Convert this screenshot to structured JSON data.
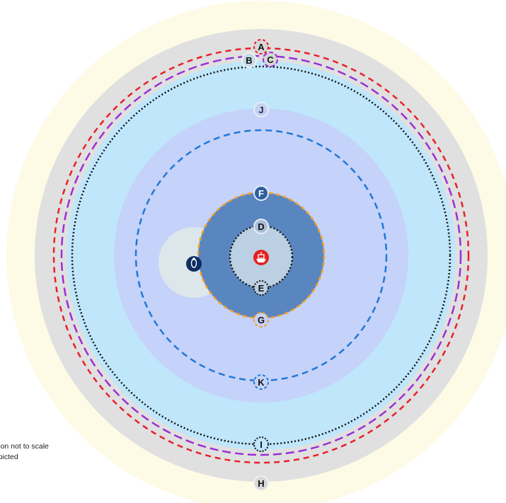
{
  "diagram": {
    "labels": {
      "A": "A",
      "B": "B",
      "C": "C",
      "D": "D",
      "E": "E",
      "F": "F",
      "G": "G",
      "H": "H",
      "I": "I",
      "J": "J",
      "K": "K"
    },
    "icons": {
      "center": "ship-icon",
      "side": "diver-icon"
    },
    "notes": {
      "line1": "ration not to scale",
      "line2": "depicted"
    },
    "colors": {
      "outer_halo": "#fdfbe6",
      "outer_ring": "#e0e0e0",
      "light_blue_zone": "#bfe6fb",
      "periwinkle_zone": "#c5d2f9",
      "inner_zone": "#5a86bf",
      "core_zone": "#bcd0e3",
      "side_circle": "#dde6ea",
      "red_dash": "#e8202a",
      "purple_dash": "#9a2fd6",
      "blue_dash": "#1f78d8",
      "orange_dash": "#f2a12d",
      "ship_red": "#e42121",
      "diver_navy": "#0e2d63"
    }
  }
}
